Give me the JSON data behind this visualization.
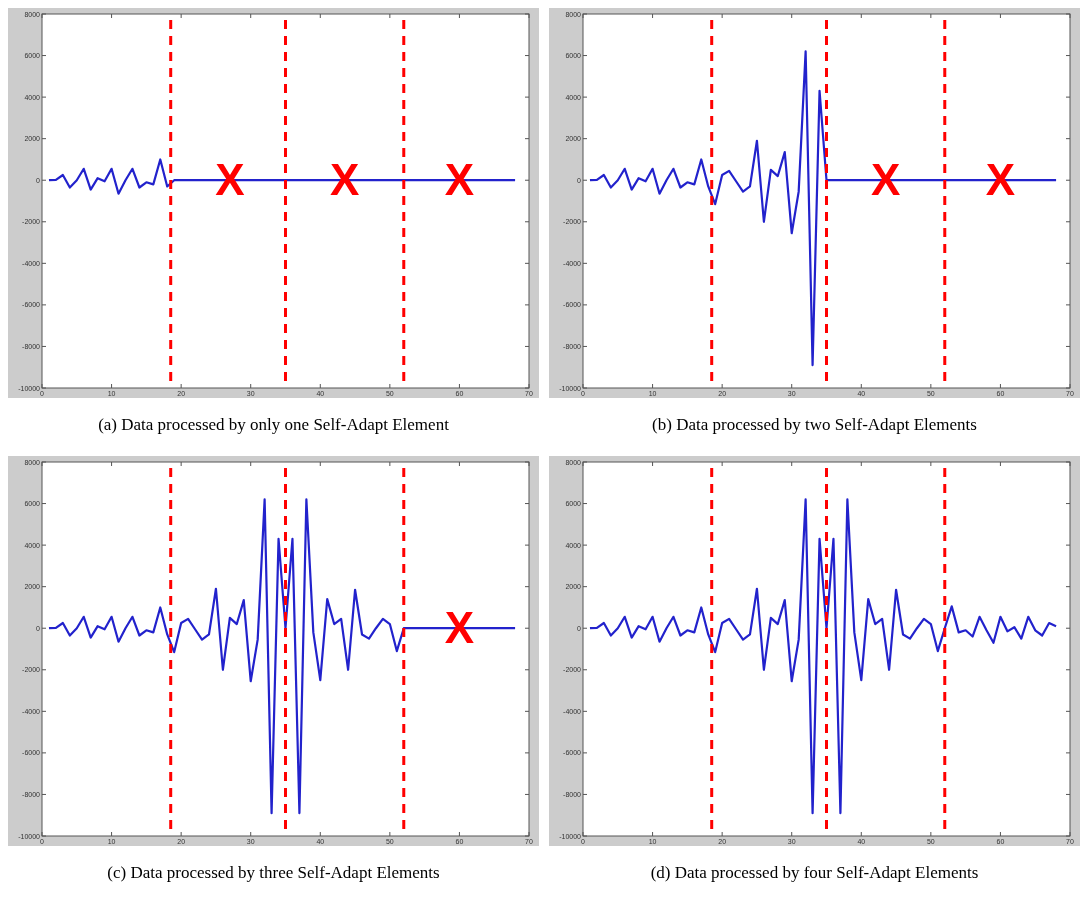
{
  "chart_data": [
    {
      "type": "line",
      "title": "(a)  Data processed by only one Self-Adapt Element",
      "x": [
        1,
        2,
        3,
        4,
        5,
        6,
        7,
        8,
        9,
        10,
        11,
        12,
        13,
        14,
        15,
        16,
        17,
        18,
        19,
        20,
        21,
        22,
        23,
        24,
        25,
        26,
        27,
        28,
        29,
        30,
        31,
        32,
        33,
        34,
        35,
        36,
        37,
        38,
        39,
        40,
        41,
        42,
        43,
        44,
        45,
        46,
        47,
        48,
        49,
        50,
        51,
        52,
        53,
        54,
        55,
        56,
        57,
        58,
        59,
        60,
        61,
        62,
        63,
        64,
        65,
        66,
        67,
        68
      ],
      "series": [
        {
          "color": "#2222cc",
          "values": [
            0,
            20,
            250,
            -350,
            0,
            550,
            -450,
            100,
            -50,
            550,
            -650,
            0,
            550,
            -350,
            -100,
            -200,
            1000,
            -300,
            0,
            0,
            0,
            0,
            0,
            0,
            0,
            0,
            0,
            0,
            0,
            0,
            0,
            0,
            0,
            0,
            0,
            0,
            0,
            0,
            0,
            0,
            0,
            0,
            0,
            0,
            0,
            0,
            0,
            0,
            0,
            0,
            0,
            0,
            0,
            0,
            0,
            0,
            0,
            0,
            0,
            0,
            0,
            0,
            0,
            0,
            0,
            0,
            0,
            0
          ]
        }
      ],
      "xlim": [
        0,
        70
      ],
      "ylim": [
        -10000,
        8000
      ],
      "xticks": [
        0,
        10,
        20,
        30,
        40,
        50,
        60,
        70
      ],
      "yticks": [
        -10000,
        -8000,
        -6000,
        -4000,
        -2000,
        0,
        2000,
        4000,
        6000,
        8000
      ],
      "ref_lines": [
        {
          "axis": "x",
          "value": 18.5,
          "color": "#ff0000",
          "line_style": "dashed"
        },
        {
          "axis": "x",
          "value": 35,
          "color": "#ff0000",
          "line_style": "dashed"
        },
        {
          "axis": "x",
          "value": 52,
          "color": "#ff0000",
          "line_style": "dashed"
        }
      ],
      "annotations": [
        {
          "text": "X",
          "x": 27,
          "y": 0
        },
        {
          "text": "X",
          "x": 43.5,
          "y": 0
        },
        {
          "text": "X",
          "x": 60,
          "y": 0
        }
      ]
    },
    {
      "type": "line",
      "title": "(b)  Data processed by two Self-Adapt Elements",
      "x": [
        1,
        2,
        3,
        4,
        5,
        6,
        7,
        8,
        9,
        10,
        11,
        12,
        13,
        14,
        15,
        16,
        17,
        18,
        19,
        20,
        21,
        22,
        23,
        24,
        25,
        26,
        27,
        28,
        29,
        30,
        31,
        32,
        33,
        34,
        35,
        36,
        37,
        38,
        39,
        40,
        41,
        42,
        43,
        44,
        45,
        46,
        47,
        48,
        49,
        50,
        51,
        52,
        53,
        54,
        55,
        56,
        57,
        58,
        59,
        60,
        61,
        62,
        63,
        64,
        65,
        66,
        67,
        68
      ],
      "series": [
        {
          "color": "#2222cc",
          "values": [
            0,
            20,
            250,
            -350,
            0,
            550,
            -450,
            100,
            -50,
            550,
            -650,
            0,
            550,
            -350,
            -100,
            -200,
            1000,
            -300,
            -1150,
            250,
            450,
            -50,
            -550,
            -300,
            1900,
            -2000,
            500,
            200,
            1350,
            -2550,
            -550,
            6200,
            -8900,
            4300,
            0,
            0,
            0,
            0,
            0,
            0,
            0,
            0,
            0,
            0,
            0,
            0,
            0,
            0,
            0,
            0,
            0,
            0,
            0,
            0,
            0,
            0,
            0,
            0,
            0,
            0,
            0,
            0,
            0,
            0,
            0,
            0,
            0,
            0
          ]
        }
      ],
      "xlim": [
        0,
        70
      ],
      "ylim": [
        -10000,
        8000
      ],
      "xticks": [
        0,
        10,
        20,
        30,
        40,
        50,
        60,
        70
      ],
      "yticks": [
        -10000,
        -8000,
        -6000,
        -4000,
        -2000,
        0,
        2000,
        4000,
        6000,
        8000
      ],
      "ref_lines": [
        {
          "axis": "x",
          "value": 18.5,
          "color": "#ff0000",
          "line_style": "dashed"
        },
        {
          "axis": "x",
          "value": 35,
          "color": "#ff0000",
          "line_style": "dashed"
        },
        {
          "axis": "x",
          "value": 52,
          "color": "#ff0000",
          "line_style": "dashed"
        }
      ],
      "annotations": [
        {
          "text": "X",
          "x": 43.5,
          "y": 0
        },
        {
          "text": "X",
          "x": 60,
          "y": 0
        }
      ]
    },
    {
      "type": "line",
      "title": "(c)  Data processed by three Self-Adapt Elements",
      "x": [
        1,
        2,
        3,
        4,
        5,
        6,
        7,
        8,
        9,
        10,
        11,
        12,
        13,
        14,
        15,
        16,
        17,
        18,
        19,
        20,
        21,
        22,
        23,
        24,
        25,
        26,
        27,
        28,
        29,
        30,
        31,
        32,
        33,
        34,
        35,
        36,
        37,
        38,
        39,
        40,
        41,
        42,
        43,
        44,
        45,
        46,
        47,
        48,
        49,
        50,
        51,
        52,
        53,
        54,
        55,
        56,
        57,
        58,
        59,
        60,
        61,
        62,
        63,
        64,
        65,
        66,
        67,
        68
      ],
      "series": [
        {
          "color": "#2222cc",
          "values": [
            0,
            20,
            250,
            -350,
            0,
            550,
            -450,
            100,
            -50,
            550,
            -650,
            0,
            550,
            -350,
            -100,
            -200,
            1000,
            -300,
            -1150,
            250,
            450,
            -50,
            -550,
            -300,
            1900,
            -2000,
            500,
            200,
            1350,
            -2550,
            -550,
            6200,
            -8900,
            4300,
            0,
            4300,
            -8900,
            6200,
            -200,
            -2500,
            1400,
            200,
            450,
            -2000,
            1850,
            -300,
            -500,
            0,
            450,
            200,
            -1100,
            0,
            0,
            0,
            0,
            0,
            0,
            0,
            0,
            0,
            0,
            0,
            0,
            0,
            0,
            0,
            0,
            0
          ]
        }
      ],
      "xlim": [
        0,
        70
      ],
      "ylim": [
        -10000,
        8000
      ],
      "xticks": [
        0,
        10,
        20,
        30,
        40,
        50,
        60,
        70
      ],
      "yticks": [
        -10000,
        -8000,
        -6000,
        -4000,
        -2000,
        0,
        2000,
        4000,
        6000,
        8000
      ],
      "ref_lines": [
        {
          "axis": "x",
          "value": 18.5,
          "color": "#ff0000",
          "line_style": "dashed"
        },
        {
          "axis": "x",
          "value": 35,
          "color": "#ff0000",
          "line_style": "dashed"
        },
        {
          "axis": "x",
          "value": 52,
          "color": "#ff0000",
          "line_style": "dashed"
        }
      ],
      "annotations": [
        {
          "text": "X",
          "x": 60,
          "y": 0
        }
      ]
    },
    {
      "type": "line",
      "title": "(d)  Data processed by four Self-Adapt Elements",
      "x": [
        1,
        2,
        3,
        4,
        5,
        6,
        7,
        8,
        9,
        10,
        11,
        12,
        13,
        14,
        15,
        16,
        17,
        18,
        19,
        20,
        21,
        22,
        23,
        24,
        25,
        26,
        27,
        28,
        29,
        30,
        31,
        32,
        33,
        34,
        35,
        36,
        37,
        38,
        39,
        40,
        41,
        42,
        43,
        44,
        45,
        46,
        47,
        48,
        49,
        50,
        51,
        52,
        53,
        54,
        55,
        56,
        57,
        58,
        59,
        60,
        61,
        62,
        63,
        64,
        65,
        66,
        67,
        68
      ],
      "series": [
        {
          "color": "#2222cc",
          "values": [
            0,
            20,
            250,
            -350,
            0,
            550,
            -450,
            100,
            -50,
            550,
            -650,
            0,
            550,
            -350,
            -100,
            -200,
            1000,
            -300,
            -1150,
            250,
            450,
            -50,
            -550,
            -300,
            1900,
            -2000,
            500,
            200,
            1350,
            -2550,
            -550,
            6200,
            -8900,
            4300,
            0,
            4300,
            -8900,
            6200,
            -200,
            -2500,
            1400,
            200,
            450,
            -2000,
            1850,
            -300,
            -500,
            0,
            450,
            200,
            -1100,
            0,
            1050,
            -200,
            -100,
            -400,
            550,
            -100,
            -700,
            550,
            -150,
            50,
            -500,
            550,
            -100,
            -350,
            250,
            100
          ]
        }
      ],
      "xlim": [
        0,
        70
      ],
      "ylim": [
        -10000,
        8000
      ],
      "xticks": [
        0,
        10,
        20,
        30,
        40,
        50,
        60,
        70
      ],
      "yticks": [
        -10000,
        -8000,
        -6000,
        -4000,
        -2000,
        0,
        2000,
        4000,
        6000,
        8000
      ],
      "ref_lines": [
        {
          "axis": "x",
          "value": 18.5,
          "color": "#ff0000",
          "line_style": "dashed"
        },
        {
          "axis": "x",
          "value": 35,
          "color": "#ff0000",
          "line_style": "dashed"
        },
        {
          "axis": "x",
          "value": 52,
          "color": "#ff0000",
          "line_style": "dashed"
        }
      ]
    }
  ]
}
